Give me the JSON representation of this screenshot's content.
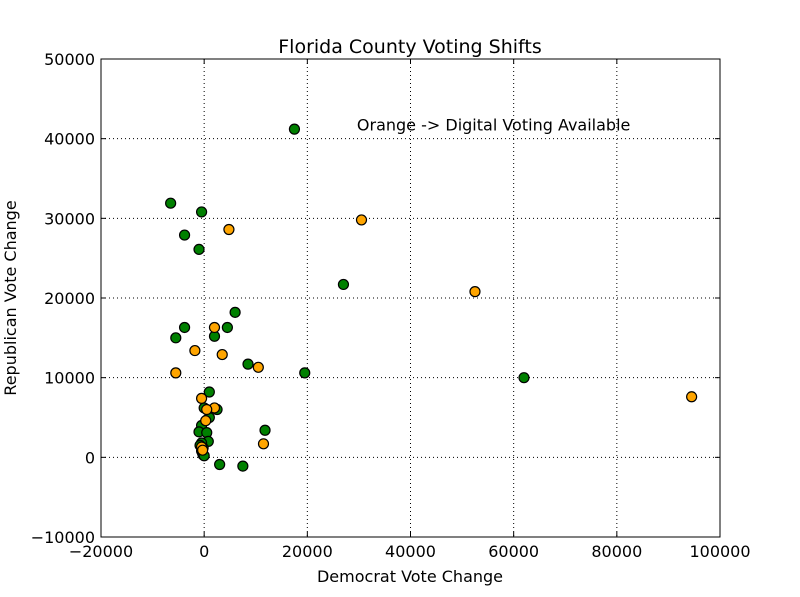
{
  "chart_data": {
    "type": "scatter",
    "title": "Florida County Voting Shifts",
    "xlabel": "Democrat Vote Change",
    "ylabel": "Republican Vote Change",
    "xlim": [
      -20000,
      100000
    ],
    "ylim": [
      -10000,
      50000
    ],
    "xticks": [
      -20000,
      0,
      20000,
      40000,
      60000,
      80000,
      100000
    ],
    "yticks": [
      -10000,
      0,
      10000,
      20000,
      30000,
      40000,
      50000
    ],
    "grid": true,
    "annotation": {
      "text": "Orange -> Digital Voting Available",
      "x": 30000,
      "y": 41000
    },
    "colors": {
      "digital": "#ffa500",
      "non_digital": "#008000",
      "edge": "#000000"
    },
    "series": [
      {
        "color": "#008000",
        "points": [
          {
            "x": 17500,
            "y": 41200
          },
          {
            "x": -6500,
            "y": 31900
          },
          {
            "x": -500,
            "y": 30800
          },
          {
            "x": -3800,
            "y": 27900
          },
          {
            "x": -1000,
            "y": 26100
          },
          {
            "x": 27000,
            "y": 21700
          },
          {
            "x": 6000,
            "y": 18200
          },
          {
            "x": -3800,
            "y": 16300
          },
          {
            "x": 4500,
            "y": 16300
          },
          {
            "x": -5500,
            "y": 15000
          },
          {
            "x": 2000,
            "y": 15200
          },
          {
            "x": 8500,
            "y": 11700
          },
          {
            "x": 19500,
            "y": 10600
          },
          {
            "x": 62000,
            "y": 10000
          },
          {
            "x": 1000,
            "y": 8200
          },
          {
            "x": 2500,
            "y": 6000
          },
          {
            "x": 0,
            "y": 6200
          },
          {
            "x": 1000,
            "y": 5000
          },
          {
            "x": 11800,
            "y": 3400
          },
          {
            "x": -500,
            "y": 4000
          },
          {
            "x": -1000,
            "y": 3200
          },
          {
            "x": 500,
            "y": 3100
          },
          {
            "x": 800,
            "y": 2000
          },
          {
            "x": -500,
            "y": 1800
          },
          {
            "x": -800,
            "y": 1500
          },
          {
            "x": -200,
            "y": 1200
          },
          {
            "x": -500,
            "y": 800
          },
          {
            "x": -300,
            "y": 500
          },
          {
            "x": -200,
            "y": 300
          },
          {
            "x": 0,
            "y": 200
          },
          {
            "x": 3000,
            "y": -900
          },
          {
            "x": 7500,
            "y": -1100
          }
        ]
      },
      {
        "color": "#ffa500",
        "points": [
          {
            "x": 30500,
            "y": 29800
          },
          {
            "x": 4800,
            "y": 28600
          },
          {
            "x": 52500,
            "y": 20800
          },
          {
            "x": 2000,
            "y": 16300
          },
          {
            "x": -1800,
            "y": 13400
          },
          {
            "x": 3500,
            "y": 12900
          },
          {
            "x": 10500,
            "y": 11300
          },
          {
            "x": -5500,
            "y": 10600
          },
          {
            "x": 94500,
            "y": 7600
          },
          {
            "x": -500,
            "y": 7400
          },
          {
            "x": 2000,
            "y": 6200
          },
          {
            "x": 500,
            "y": 6000
          },
          {
            "x": 300,
            "y": 4600
          },
          {
            "x": 11500,
            "y": 1700
          },
          {
            "x": -500,
            "y": 1300
          },
          {
            "x": -300,
            "y": 900
          }
        ]
      }
    ]
  }
}
